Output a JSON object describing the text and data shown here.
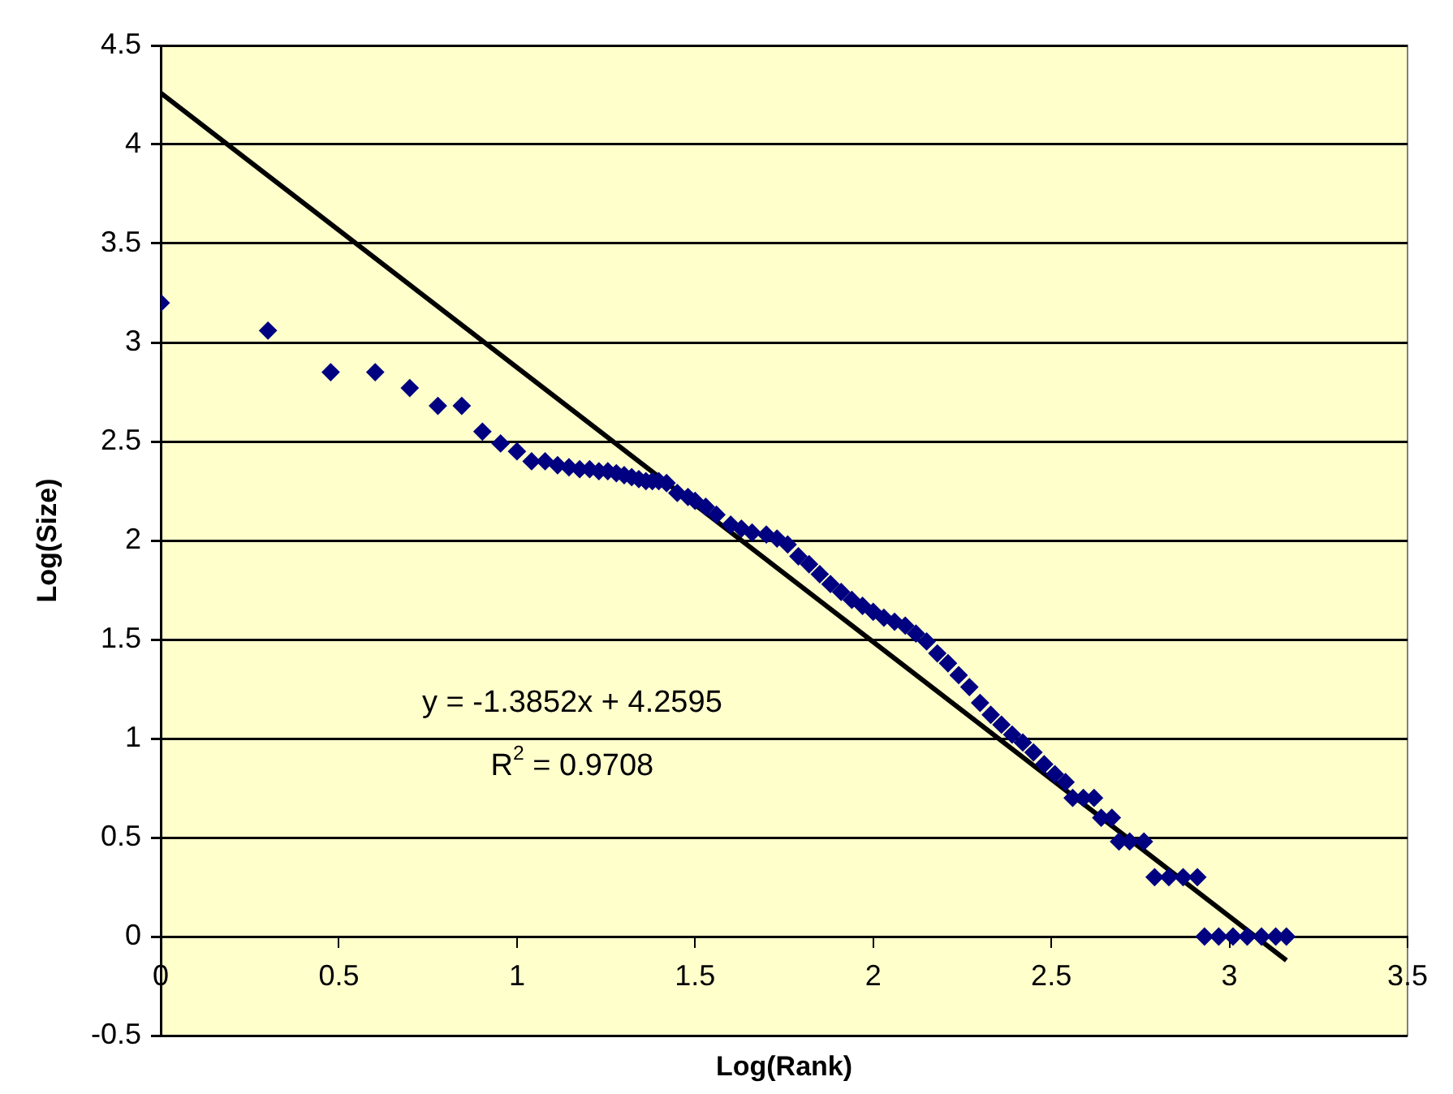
{
  "chart_data": {
    "type": "scatter",
    "xlabel": "Log(Rank)",
    "ylabel": "Log(Size)",
    "xlim": [
      0,
      3.5
    ],
    "xticks": [
      0,
      0.5,
      1,
      1.5,
      2,
      2.5,
      3,
      3.5
    ],
    "ylim": [
      -0.5,
      4.5
    ],
    "yticks": [
      -0.5,
      0,
      0.5,
      1,
      1.5,
      2,
      2.5,
      3,
      3.5,
      4,
      4.5
    ],
    "grid": "y",
    "legend": false,
    "annotations": [
      "y = -1.3852x + 4.2595",
      "R$^{2}$ = 0.9708"
    ],
    "series": [
      {
        "type": "scatter",
        "color": "#000080",
        "marker": "diamond",
        "x": [
          0,
          0.301,
          0.477,
          0.602,
          0.699,
          0.778,
          0.845,
          0.903,
          0.954,
          1.0,
          1.041,
          1.079,
          1.114,
          1.146,
          1.176,
          1.204,
          1.23,
          1.255,
          1.279,
          1.301,
          1.322,
          1.342,
          1.362,
          1.38,
          1.398,
          1.42,
          1.45,
          1.48,
          1.5,
          1.53,
          1.56,
          1.6,
          1.63,
          1.66,
          1.7,
          1.73,
          1.76,
          1.79,
          1.82,
          1.85,
          1.88,
          1.91,
          1.94,
          1.97,
          2.0,
          2.03,
          2.06,
          2.09,
          2.12,
          2.15,
          2.18,
          2.21,
          2.24,
          2.27,
          2.3,
          2.33,
          2.36,
          2.39,
          2.42,
          2.45,
          2.48,
          2.51,
          2.54,
          2.56,
          2.59,
          2.62,
          2.64,
          2.67,
          2.69,
          2.72,
          2.76,
          2.79,
          2.83,
          2.87,
          2.91,
          2.93,
          2.97,
          3.01,
          3.05,
          3.09,
          3.13,
          3.16
        ],
        "values": [
          3.2,
          3.06,
          2.85,
          2.85,
          2.77,
          2.68,
          2.68,
          2.55,
          2.49,
          2.45,
          2.4,
          2.4,
          2.38,
          2.37,
          2.36,
          2.36,
          2.35,
          2.35,
          2.34,
          2.33,
          2.32,
          2.31,
          2.3,
          2.3,
          2.3,
          2.29,
          2.24,
          2.22,
          2.2,
          2.17,
          2.13,
          2.08,
          2.06,
          2.04,
          2.03,
          2.01,
          1.98,
          1.92,
          1.88,
          1.83,
          1.78,
          1.74,
          1.7,
          1.67,
          1.64,
          1.61,
          1.59,
          1.57,
          1.53,
          1.49,
          1.43,
          1.38,
          1.32,
          1.26,
          1.18,
          1.12,
          1.07,
          1.02,
          0.98,
          0.93,
          0.87,
          0.82,
          0.78,
          0.7,
          0.7,
          0.7,
          0.6,
          0.6,
          0.48,
          0.48,
          0.48,
          0.3,
          0.3,
          0.3,
          0.3,
          0,
          0,
          0,
          0,
          0,
          0,
          0
        ]
      },
      {
        "type": "line",
        "color": "#000000",
        "marker": "none",
        "line_style": "solid",
        "x": [
          0,
          3.16
        ],
        "values": [
          4.26,
          -0.12
        ]
      }
    ]
  }
}
